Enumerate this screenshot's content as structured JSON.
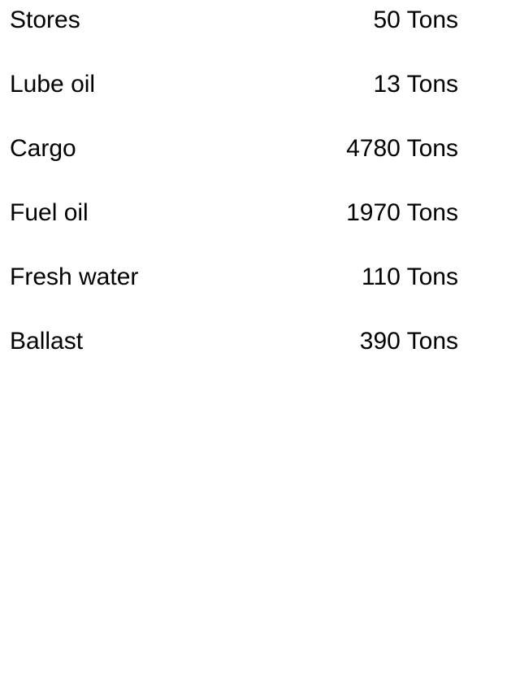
{
  "items": [
    {
      "label": "Stores",
      "value": "50 Tons"
    },
    {
      "label": "Lube oil",
      "value": "13 Tons"
    },
    {
      "label": "Cargo",
      "value": "4780 Tons"
    },
    {
      "label": "Fuel oil",
      "value": "1970 Tons"
    },
    {
      "label": "Fresh water",
      "value": "110 Tons"
    },
    {
      "label": "Ballast",
      "value": "390 Tons"
    }
  ]
}
